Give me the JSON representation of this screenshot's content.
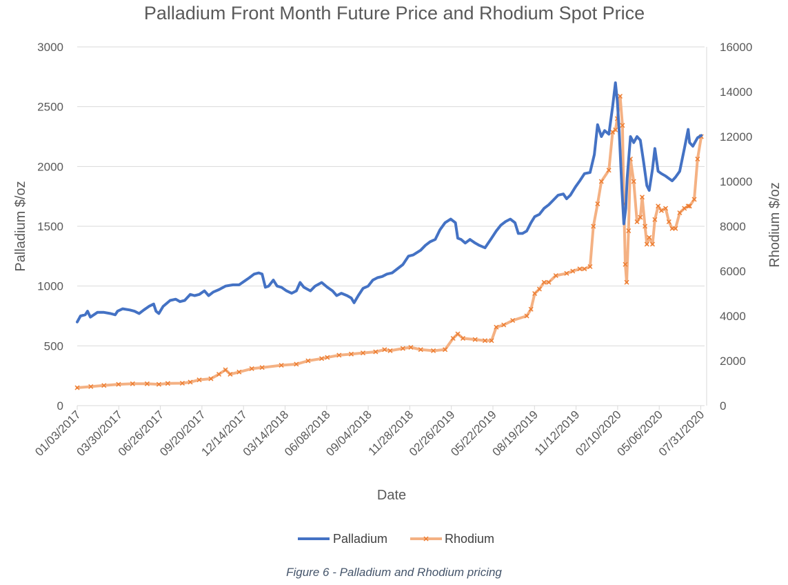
{
  "caption": "Figure 6 - Palladium and Rhodium pricing",
  "colors": {
    "palladium": "#4472C4",
    "rhodium": "#ED7D31",
    "rhodium_line": "#F4B183",
    "grid": "#D9D9D9",
    "text": "#595959"
  },
  "chart_data": {
    "type": "line",
    "title": "Palladium Front Month Future Price and Rhodium Spot Price",
    "xlabel": "Date",
    "ylabel": "Palladium $/oz",
    "y2label": "Rhodium $/oz",
    "ylim": [
      0,
      3000
    ],
    "y2lim": [
      0,
      16000
    ],
    "yticks": [
      0,
      500,
      1000,
      1500,
      2000,
      2500,
      3000
    ],
    "y2ticks": [
      0,
      2000,
      4000,
      6000,
      8000,
      10000,
      12000,
      14000,
      16000
    ],
    "xticks": [
      "01/03/2017",
      "03/30/2017",
      "06/26/2017",
      "09/20/2017",
      "12/14/2017",
      "03/14/2018",
      "06/08/2018",
      "09/04/2018",
      "11/28/2018",
      "02/26/2019",
      "05/22/2019",
      "08/19/2019",
      "11/12/2019",
      "02/10/2020",
      "05/06/2020",
      "07/31/2020"
    ],
    "x_range": [
      "2017-01-03",
      "2020-09-01"
    ],
    "grid": "horizontal",
    "legend": "bottom",
    "series": [
      {
        "name": "Palladium",
        "axis": "left",
        "marker": "none",
        "points": [
          [
            "2017-01-03",
            700
          ],
          [
            "2017-01-10",
            750
          ],
          [
            "2017-01-20",
            760
          ],
          [
            "2017-01-25",
            790
          ],
          [
            "2017-01-31",
            740
          ],
          [
            "2017-02-15",
            780
          ],
          [
            "2017-03-01",
            780
          ],
          [
            "2017-03-15",
            770
          ],
          [
            "2017-03-25",
            760
          ],
          [
            "2017-03-30",
            790
          ],
          [
            "2017-04-10",
            810
          ],
          [
            "2017-04-25",
            800
          ],
          [
            "2017-05-05",
            790
          ],
          [
            "2017-05-15",
            770
          ],
          [
            "2017-05-25",
            800
          ],
          [
            "2017-06-05",
            830
          ],
          [
            "2017-06-15",
            850
          ],
          [
            "2017-06-20",
            790
          ],
          [
            "2017-06-26",
            770
          ],
          [
            "2017-07-05",
            830
          ],
          [
            "2017-07-20",
            880
          ],
          [
            "2017-08-01",
            890
          ],
          [
            "2017-08-10",
            870
          ],
          [
            "2017-08-20",
            880
          ],
          [
            "2017-09-01",
            930
          ],
          [
            "2017-09-10",
            920
          ],
          [
            "2017-09-20",
            930
          ],
          [
            "2017-10-01",
            960
          ],
          [
            "2017-10-10",
            920
          ],
          [
            "2017-10-20",
            950
          ],
          [
            "2017-11-01",
            970
          ],
          [
            "2017-11-15",
            1000
          ],
          [
            "2017-12-01",
            1010
          ],
          [
            "2017-12-14",
            1010
          ],
          [
            "2017-12-25",
            1040
          ],
          [
            "2018-01-05",
            1070
          ],
          [
            "2018-01-15",
            1100
          ],
          [
            "2018-01-25",
            1110
          ],
          [
            "2018-02-01",
            1100
          ],
          [
            "2018-02-08",
            990
          ],
          [
            "2018-02-15",
            1000
          ],
          [
            "2018-02-25",
            1050
          ],
          [
            "2018-03-05",
            1000
          ],
          [
            "2018-03-14",
            990
          ],
          [
            "2018-03-25",
            960
          ],
          [
            "2018-04-05",
            940
          ],
          [
            "2018-04-15",
            960
          ],
          [
            "2018-04-23",
            1030
          ],
          [
            "2018-05-01",
            990
          ],
          [
            "2018-05-15",
            960
          ],
          [
            "2018-05-25",
            1000
          ],
          [
            "2018-06-08",
            1030
          ],
          [
            "2018-06-20",
            990
          ],
          [
            "2018-07-01",
            960
          ],
          [
            "2018-07-10",
            920
          ],
          [
            "2018-07-20",
            940
          ],
          [
            "2018-08-01",
            920
          ],
          [
            "2018-08-10",
            900
          ],
          [
            "2018-08-16",
            860
          ],
          [
            "2018-08-25",
            920
          ],
          [
            "2018-09-04",
            980
          ],
          [
            "2018-09-15",
            1000
          ],
          [
            "2018-09-25",
            1050
          ],
          [
            "2018-10-05",
            1070
          ],
          [
            "2018-10-15",
            1080
          ],
          [
            "2018-10-25",
            1100
          ],
          [
            "2018-11-05",
            1110
          ],
          [
            "2018-11-15",
            1140
          ],
          [
            "2018-11-28",
            1180
          ],
          [
            "2018-12-10",
            1250
          ],
          [
            "2018-12-20",
            1260
          ],
          [
            "2019-01-05",
            1300
          ],
          [
            "2019-01-15",
            1340
          ],
          [
            "2019-01-25",
            1370
          ],
          [
            "2019-02-05",
            1390
          ],
          [
            "2019-02-15",
            1470
          ],
          [
            "2019-02-26",
            1530
          ],
          [
            "2019-03-10",
            1560
          ],
          [
            "2019-03-20",
            1530
          ],
          [
            "2019-03-25",
            1400
          ],
          [
            "2019-04-01",
            1390
          ],
          [
            "2019-04-10",
            1360
          ],
          [
            "2019-04-20",
            1390
          ],
          [
            "2019-05-01",
            1360
          ],
          [
            "2019-05-10",
            1340
          ],
          [
            "2019-05-22",
            1320
          ],
          [
            "2019-06-05",
            1400
          ],
          [
            "2019-06-15",
            1460
          ],
          [
            "2019-06-25",
            1510
          ],
          [
            "2019-07-05",
            1540
          ],
          [
            "2019-07-15",
            1560
          ],
          [
            "2019-07-25",
            1530
          ],
          [
            "2019-08-01",
            1440
          ],
          [
            "2019-08-10",
            1440
          ],
          [
            "2019-08-19",
            1460
          ],
          [
            "2019-08-28",
            1530
          ],
          [
            "2019-09-05",
            1580
          ],
          [
            "2019-09-15",
            1600
          ],
          [
            "2019-09-25",
            1650
          ],
          [
            "2019-10-05",
            1680
          ],
          [
            "2019-10-15",
            1720
          ],
          [
            "2019-10-25",
            1760
          ],
          [
            "2019-11-05",
            1770
          ],
          [
            "2019-11-12",
            1730
          ],
          [
            "2019-11-20",
            1760
          ],
          [
            "2019-12-01",
            1830
          ],
          [
            "2019-12-10",
            1880
          ],
          [
            "2019-12-20",
            1940
          ],
          [
            "2020-01-01",
            1950
          ],
          [
            "2020-01-10",
            2100
          ],
          [
            "2020-01-17",
            2350
          ],
          [
            "2020-01-25",
            2250
          ],
          [
            "2020-02-01",
            2300
          ],
          [
            "2020-02-10",
            2270
          ],
          [
            "2020-02-18",
            2500
          ],
          [
            "2020-02-24",
            2700
          ],
          [
            "2020-02-28",
            2550
          ],
          [
            "2020-03-03",
            2300
          ],
          [
            "2020-03-09",
            1800
          ],
          [
            "2020-03-13",
            1520
          ],
          [
            "2020-03-17",
            1650
          ],
          [
            "2020-03-20",
            1900
          ],
          [
            "2020-03-27",
            2250
          ],
          [
            "2020-04-03",
            2200
          ],
          [
            "2020-04-10",
            2250
          ],
          [
            "2020-04-17",
            2220
          ],
          [
            "2020-04-24",
            2040
          ],
          [
            "2020-05-01",
            1840
          ],
          [
            "2020-05-06",
            1800
          ],
          [
            "2020-05-13",
            1980
          ],
          [
            "2020-05-18",
            2150
          ],
          [
            "2020-05-25",
            1960
          ],
          [
            "2020-06-01",
            1940
          ],
          [
            "2020-06-10",
            1920
          ],
          [
            "2020-06-17",
            1900
          ],
          [
            "2020-06-24",
            1880
          ],
          [
            "2020-07-01",
            1910
          ],
          [
            "2020-07-10",
            1960
          ],
          [
            "2020-07-20",
            2150
          ],
          [
            "2020-07-28",
            2310
          ],
          [
            "2020-07-31",
            2200
          ],
          [
            "2020-08-07",
            2170
          ],
          [
            "2020-08-17",
            2240
          ],
          [
            "2020-08-25",
            2260
          ]
        ]
      },
      {
        "name": "Rhodium",
        "axis": "right",
        "marker": "x",
        "points": [
          [
            "2017-01-03",
            800
          ],
          [
            "2017-02-01",
            850
          ],
          [
            "2017-03-01",
            900
          ],
          [
            "2017-04-01",
            950
          ],
          [
            "2017-05-01",
            975
          ],
          [
            "2017-06-01",
            975
          ],
          [
            "2017-06-26",
            950
          ],
          [
            "2017-07-15",
            990
          ],
          [
            "2017-08-15",
            1000
          ],
          [
            "2017-09-01",
            1050
          ],
          [
            "2017-09-20",
            1150
          ],
          [
            "2017-10-15",
            1200
          ],
          [
            "2017-11-01",
            1400
          ],
          [
            "2017-11-15",
            1600
          ],
          [
            "2017-11-25",
            1400
          ],
          [
            "2017-12-14",
            1500
          ],
          [
            "2018-01-10",
            1650
          ],
          [
            "2018-02-01",
            1700
          ],
          [
            "2018-03-14",
            1800
          ],
          [
            "2018-04-15",
            1850
          ],
          [
            "2018-05-10",
            2000
          ],
          [
            "2018-06-08",
            2100
          ],
          [
            "2018-06-20",
            2150
          ],
          [
            "2018-07-15",
            2250
          ],
          [
            "2018-08-10",
            2300
          ],
          [
            "2018-09-04",
            2350
          ],
          [
            "2018-10-01",
            2400
          ],
          [
            "2018-10-20",
            2500
          ],
          [
            "2018-11-01",
            2450
          ],
          [
            "2018-11-28",
            2550
          ],
          [
            "2018-12-15",
            2600
          ],
          [
            "2019-01-05",
            2500
          ],
          [
            "2019-02-01",
            2450
          ],
          [
            "2019-02-26",
            2500
          ],
          [
            "2019-03-15",
            3000
          ],
          [
            "2019-03-25",
            3200
          ],
          [
            "2019-04-05",
            3000
          ],
          [
            "2019-05-01",
            2950
          ],
          [
            "2019-05-22",
            2900
          ],
          [
            "2019-06-05",
            2900
          ],
          [
            "2019-06-15",
            3500
          ],
          [
            "2019-07-01",
            3600
          ],
          [
            "2019-07-20",
            3800
          ],
          [
            "2019-08-19",
            4000
          ],
          [
            "2019-08-28",
            4300
          ],
          [
            "2019-09-05",
            5000
          ],
          [
            "2019-09-15",
            5200
          ],
          [
            "2019-09-25",
            5500
          ],
          [
            "2019-10-05",
            5500
          ],
          [
            "2019-10-20",
            5800
          ],
          [
            "2019-11-12",
            5900
          ],
          [
            "2019-11-25",
            6000
          ],
          [
            "2019-12-10",
            6100
          ],
          [
            "2019-12-20",
            6100
          ],
          [
            "2020-01-01",
            6200
          ],
          [
            "2020-01-08",
            8000
          ],
          [
            "2020-01-17",
            9000
          ],
          [
            "2020-01-25",
            10000
          ],
          [
            "2020-02-10",
            10500
          ],
          [
            "2020-02-18",
            12200
          ],
          [
            "2020-02-24",
            12300
          ],
          [
            "2020-02-28",
            12800
          ],
          [
            "2020-03-05",
            13800
          ],
          [
            "2020-03-10",
            12500
          ],
          [
            "2020-03-13",
            9000
          ],
          [
            "2020-03-16",
            6300
          ],
          [
            "2020-03-19",
            5500
          ],
          [
            "2020-03-23",
            7800
          ],
          [
            "2020-03-27",
            11000
          ],
          [
            "2020-04-03",
            10000
          ],
          [
            "2020-04-10",
            8200
          ],
          [
            "2020-04-17",
            8400
          ],
          [
            "2020-04-21",
            9300
          ],
          [
            "2020-04-27",
            8000
          ],
          [
            "2020-05-01",
            7200
          ],
          [
            "2020-05-06",
            7500
          ],
          [
            "2020-05-13",
            7200
          ],
          [
            "2020-05-18",
            8300
          ],
          [
            "2020-05-25",
            8900
          ],
          [
            "2020-06-01",
            8700
          ],
          [
            "2020-06-10",
            8800
          ],
          [
            "2020-06-17",
            8200
          ],
          [
            "2020-06-24",
            7900
          ],
          [
            "2020-07-01",
            7900
          ],
          [
            "2020-07-10",
            8600
          ],
          [
            "2020-07-20",
            8800
          ],
          [
            "2020-07-28",
            8900
          ],
          [
            "2020-07-31",
            8900
          ],
          [
            "2020-08-10",
            9200
          ],
          [
            "2020-08-17",
            11000
          ],
          [
            "2020-08-25",
            12000
          ]
        ]
      }
    ]
  }
}
